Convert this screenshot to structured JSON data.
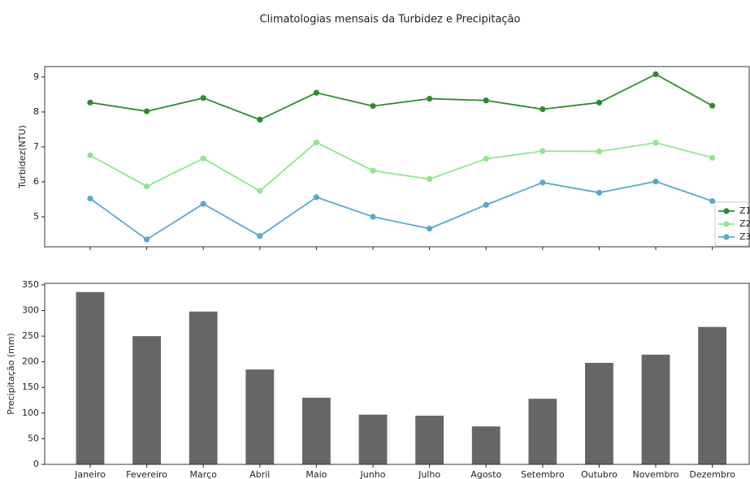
{
  "title": "Climatologias mensais da Turbidez e Precipitação",
  "chart_data": [
    {
      "type": "line",
      "ylabel": "Turbidez(NTU)",
      "series": [
        {
          "name": "Z1",
          "color": "#2f8a2f",
          "values": [
            8.27,
            8.02,
            8.4,
            7.78,
            8.55,
            8.17,
            8.38,
            8.33,
            8.08,
            8.27,
            9.08,
            8.18
          ]
        },
        {
          "name": "Z2",
          "color": "#90e590",
          "values": [
            6.76,
            5.87,
            6.67,
            5.74,
            7.13,
            6.32,
            6.08,
            6.66,
            6.88,
            6.87,
            7.12,
            6.69
          ]
        },
        {
          "name": "Z3",
          "color": "#5ba8c8",
          "values": [
            5.52,
            4.35,
            5.37,
            4.45,
            5.56,
            5.0,
            4.66,
            5.34,
            5.98,
            5.69,
            6.01,
            5.45
          ]
        }
      ],
      "ylim": [
        4.14,
        9.3
      ],
      "yticks": [
        5,
        6,
        7,
        8,
        9
      ],
      "legend": "lower right"
    },
    {
      "type": "bar",
      "ylabel": "Precipitação (mm)",
      "categories": [
        "Janeiro",
        "Fevereiro",
        "Março",
        "Abril",
        "Maio",
        "Junho",
        "Julho",
        "Agosto",
        "Setembro",
        "Outubro",
        "Novembro",
        "Dezembro"
      ],
      "values": [
        336,
        250,
        298,
        185,
        130,
        97,
        95,
        74,
        128,
        198,
        214,
        268
      ],
      "color": "#666666",
      "ylim": [
        0,
        353
      ],
      "yticks": [
        0,
        50,
        100,
        150,
        200,
        250,
        300,
        350
      ]
    }
  ]
}
